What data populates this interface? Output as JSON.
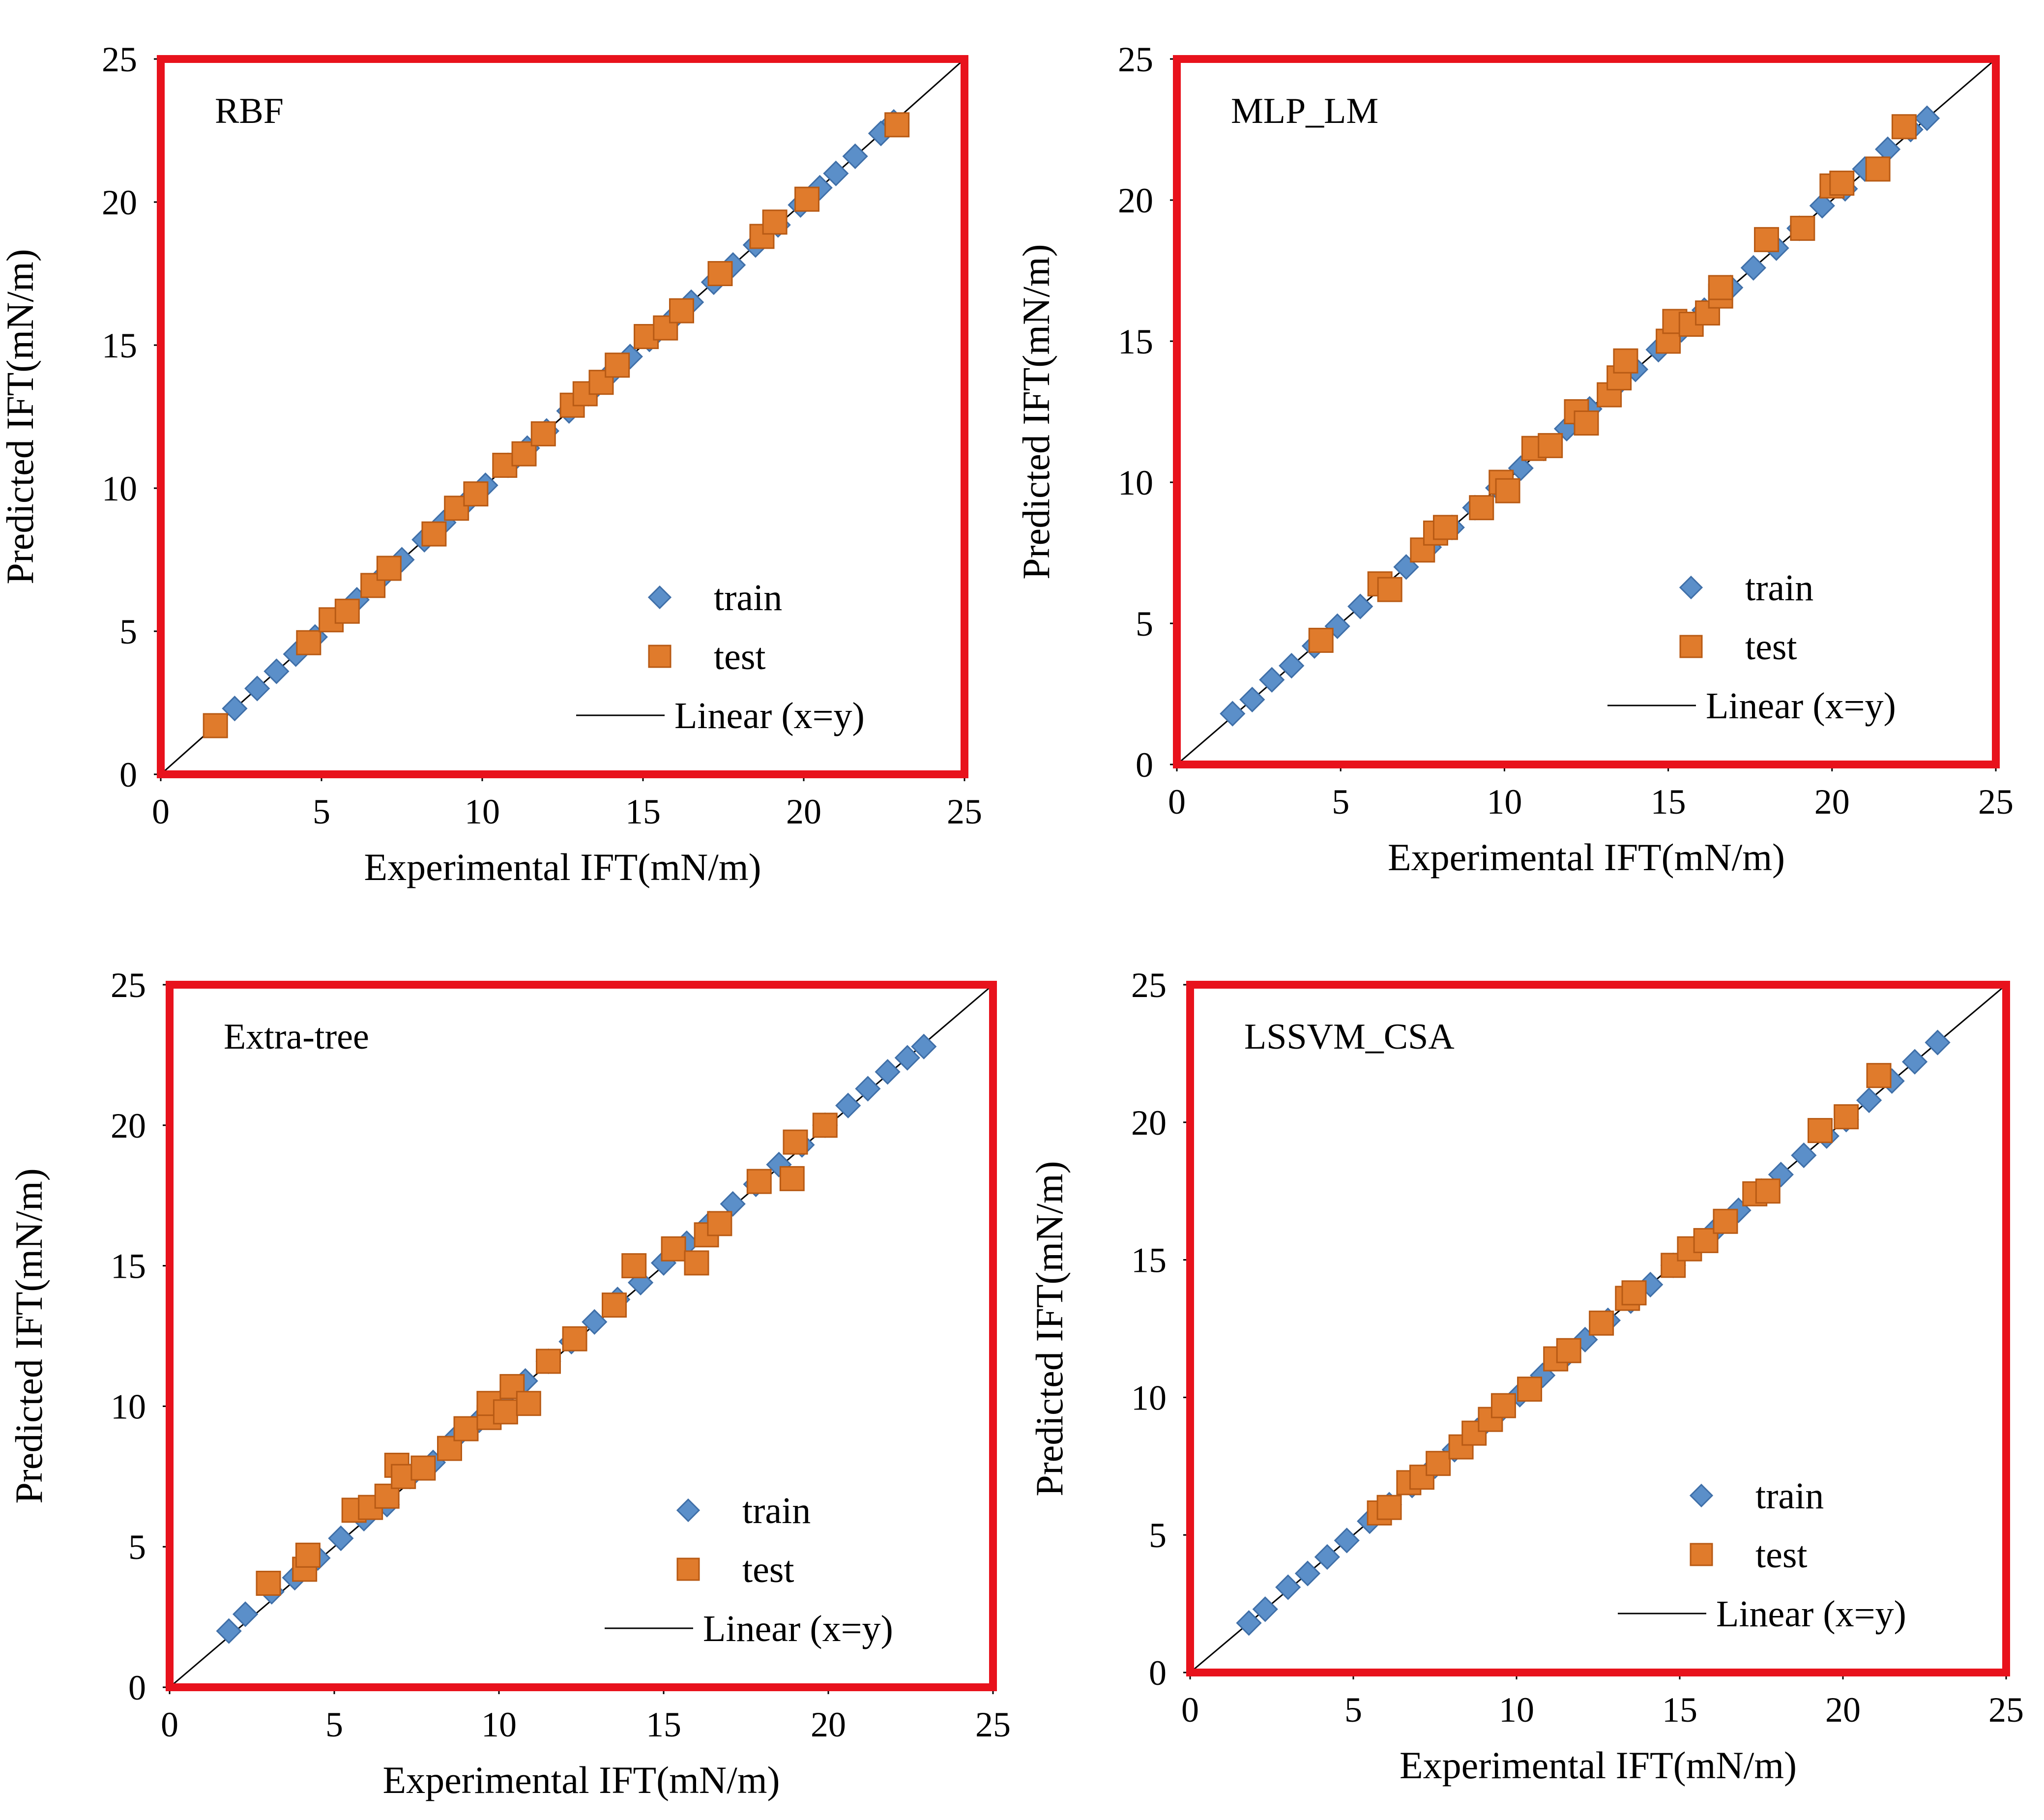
{
  "figure": {
    "colors": {
      "frame": "#e8121c",
      "train": "#5b8fc9",
      "train_edge": "#3f6fa8",
      "test": "#e07b2c",
      "test_edge": "#b85a14",
      "line": "#000000"
    }
  },
  "chart_data": [
    {
      "type": "scatter",
      "model": "RBF",
      "xlabel": "Experimental IFT(mN/m)",
      "ylabel": "Predicted  IFT(mN/m)",
      "xlim": [
        0,
        25
      ],
      "ylim": [
        0,
        25
      ],
      "xticks": [
        "0",
        "5",
        "10",
        "15",
        "20",
        "25"
      ],
      "yticks": [
        "0",
        "5",
        "10",
        "15",
        "20",
        "25"
      ],
      "legend": {
        "train": "train",
        "test": "test",
        "line": "Linear (x=y)"
      },
      "series": [
        {
          "name": "train",
          "points": [
            [
              2.3,
              2.3
            ],
            [
              3.0,
              3.0
            ],
            [
              3.6,
              3.6
            ],
            [
              4.2,
              4.2
            ],
            [
              4.8,
              4.8
            ],
            [
              5.5,
              5.5
            ],
            [
              6.1,
              6.1
            ],
            [
              6.8,
              6.8
            ],
            [
              7.5,
              7.5
            ],
            [
              8.2,
              8.2
            ],
            [
              8.8,
              8.8
            ],
            [
              9.5,
              9.5
            ],
            [
              10.1,
              10.1
            ],
            [
              10.8,
              10.8
            ],
            [
              11.4,
              11.4
            ],
            [
              12.0,
              12.0
            ],
            [
              12.7,
              12.7
            ],
            [
              13.3,
              13.3
            ],
            [
              13.9,
              13.9
            ],
            [
              14.6,
              14.6
            ],
            [
              15.2,
              15.2
            ],
            [
              15.9,
              15.9
            ],
            [
              16.5,
              16.5
            ],
            [
              17.2,
              17.2
            ],
            [
              17.8,
              17.8
            ],
            [
              18.5,
              18.5
            ],
            [
              19.2,
              19.2
            ],
            [
              19.9,
              19.9
            ],
            [
              20.5,
              20.5
            ],
            [
              21.0,
              21.0
            ],
            [
              21.6,
              21.6
            ],
            [
              22.4,
              22.4
            ],
            [
              22.8,
              22.8
            ]
          ]
        },
        {
          "name": "test",
          "points": [
            [
              1.7,
              1.7
            ],
            [
              4.6,
              4.6
            ],
            [
              5.3,
              5.4
            ],
            [
              5.8,
              5.7
            ],
            [
              6.6,
              6.6
            ],
            [
              7.1,
              7.2
            ],
            [
              8.5,
              8.4
            ],
            [
              9.2,
              9.3
            ],
            [
              9.8,
              9.8
            ],
            [
              10.7,
              10.8
            ],
            [
              11.3,
              11.2
            ],
            [
              11.9,
              11.9
            ],
            [
              12.8,
              12.9
            ],
            [
              13.2,
              13.3
            ],
            [
              13.7,
              13.7
            ],
            [
              14.2,
              14.3
            ],
            [
              15.1,
              15.3
            ],
            [
              15.7,
              15.6
            ],
            [
              16.2,
              16.2
            ],
            [
              17.4,
              17.5
            ],
            [
              18.7,
              18.8
            ],
            [
              19.1,
              19.3
            ],
            [
              20.1,
              20.1
            ],
            [
              22.9,
              22.7
            ]
          ]
        }
      ]
    },
    {
      "type": "scatter",
      "model": "MLP_LM",
      "xlabel": "Experimental IFT(mN/m)",
      "ylabel": "Predicted  IFT(mN/m)",
      "xlim": [
        0,
        25
      ],
      "ylim": [
        0,
        25
      ],
      "xticks": [
        "0",
        "5",
        "10",
        "15",
        "20",
        "25"
      ],
      "yticks": [
        "0",
        "5",
        "10",
        "15",
        "20",
        "25"
      ],
      "legend": {
        "train": "train",
        "test": "test",
        "line": "Linear (x=y)"
      },
      "series": [
        {
          "name": "train",
          "points": [
            [
              1.7,
              1.8
            ],
            [
              2.3,
              2.3
            ],
            [
              2.9,
              3.0
            ],
            [
              3.5,
              3.5
            ],
            [
              4.2,
              4.2
            ],
            [
              4.9,
              4.9
            ],
            [
              5.6,
              5.6
            ],
            [
              6.3,
              6.3
            ],
            [
              7.0,
              7.0
            ],
            [
              7.7,
              7.7
            ],
            [
              8.4,
              8.4
            ],
            [
              9.1,
              9.1
            ],
            [
              9.8,
              9.8
            ],
            [
              10.5,
              10.5
            ],
            [
              11.2,
              11.2
            ],
            [
              11.9,
              11.9
            ],
            [
              12.6,
              12.6
            ],
            [
              13.3,
              13.3
            ],
            [
              14.0,
              14.0
            ],
            [
              14.7,
              14.7
            ],
            [
              15.4,
              15.4
            ],
            [
              16.1,
              16.1
            ],
            [
              16.9,
              16.9
            ],
            [
              17.6,
              17.6
            ],
            [
              18.3,
              18.3
            ],
            [
              19.0,
              19.0
            ],
            [
              19.7,
              19.8
            ],
            [
              20.4,
              20.4
            ],
            [
              21.0,
              21.1
            ],
            [
              21.7,
              21.8
            ],
            [
              22.4,
              22.5
            ],
            [
              22.9,
              22.9
            ]
          ]
        },
        {
          "name": "test",
          "points": [
            [
              4.4,
              4.4
            ],
            [
              6.2,
              6.4
            ],
            [
              6.5,
              6.2
            ],
            [
              7.5,
              7.6
            ],
            [
              7.9,
              8.2
            ],
            [
              8.2,
              8.4
            ],
            [
              9.3,
              9.1
            ],
            [
              9.9,
              10.0
            ],
            [
              10.1,
              9.7
            ],
            [
              10.9,
              11.2
            ],
            [
              11.4,
              11.3
            ],
            [
              12.2,
              12.5
            ],
            [
              12.5,
              12.1
            ],
            [
              13.2,
              13.1
            ],
            [
              13.5,
              13.7
            ],
            [
              13.7,
              14.3
            ],
            [
              15.0,
              15.0
            ],
            [
              15.2,
              15.7
            ],
            [
              15.7,
              15.6
            ],
            [
              16.2,
              16.0
            ],
            [
              16.6,
              16.6
            ],
            [
              16.6,
              16.9
            ],
            [
              18.0,
              18.6
            ],
            [
              19.1,
              19.0
            ],
            [
              20.0,
              20.5
            ],
            [
              20.3,
              20.6
            ],
            [
              21.4,
              21.1
            ],
            [
              22.2,
              22.6
            ]
          ]
        }
      ]
    },
    {
      "type": "scatter",
      "model": "Extra-tree",
      "xlabel": "Experimental IFT(mN/m)",
      "ylabel": "Predicted  IFT(mN/m)",
      "xlim": [
        0,
        25
      ],
      "ylim": [
        0,
        25
      ],
      "xticks": [
        "0",
        "5",
        "10",
        "15",
        "20",
        "25"
      ],
      "yticks": [
        "0",
        "5",
        "10",
        "15",
        "20",
        "25"
      ],
      "legend": {
        "train": "train",
        "test": "test",
        "line": "Linear (x=y)"
      },
      "series": [
        {
          "name": "train",
          "points": [
            [
              1.8,
              2.0
            ],
            [
              2.3,
              2.6
            ],
            [
              3.1,
              3.4
            ],
            [
              3.8,
              3.9
            ],
            [
              4.5,
              4.6
            ],
            [
              5.2,
              5.3
            ],
            [
              5.9,
              6.0
            ],
            [
              6.6,
              6.5
            ],
            [
              7.3,
              7.5
            ],
            [
              8.0,
              8.0
            ],
            [
              8.7,
              8.9
            ],
            [
              9.4,
              9.5
            ],
            [
              10.1,
              10.2
            ],
            [
              10.8,
              10.9
            ],
            [
              11.5,
              11.6
            ],
            [
              12.2,
              12.3
            ],
            [
              12.9,
              13.0
            ],
            [
              13.6,
              13.8
            ],
            [
              14.3,
              14.4
            ],
            [
              15.0,
              15.1
            ],
            [
              15.7,
              15.8
            ],
            [
              16.4,
              16.5
            ],
            [
              17.1,
              17.2
            ],
            [
              17.8,
              17.9
            ],
            [
              18.5,
              18.6
            ],
            [
              19.2,
              19.3
            ],
            [
              19.9,
              20.0
            ],
            [
              20.6,
              20.7
            ],
            [
              21.2,
              21.3
            ],
            [
              21.8,
              21.9
            ],
            [
              22.4,
              22.4
            ],
            [
              22.9,
              22.8
            ]
          ]
        },
        {
          "name": "test",
          "points": [
            [
              3.0,
              3.7
            ],
            [
              4.1,
              4.2
            ],
            [
              4.2,
              4.7
            ],
            [
              5.6,
              6.3
            ],
            [
              6.1,
              6.4
            ],
            [
              6.6,
              6.8
            ],
            [
              6.9,
              7.9
            ],
            [
              7.1,
              7.5
            ],
            [
              7.7,
              7.8
            ],
            [
              8.5,
              8.5
            ],
            [
              9.0,
              9.2
            ],
            [
              9.7,
              9.6
            ],
            [
              9.7,
              10.1
            ],
            [
              10.2,
              9.8
            ],
            [
              10.4,
              10.7
            ],
            [
              10.9,
              10.1
            ],
            [
              11.5,
              11.6
            ],
            [
              12.3,
              12.4
            ],
            [
              13.5,
              13.6
            ],
            [
              14.1,
              15.0
            ],
            [
              15.3,
              15.6
            ],
            [
              16.0,
              15.1
            ],
            [
              16.3,
              16.1
            ],
            [
              16.7,
              16.5
            ],
            [
              17.9,
              18.0
            ],
            [
              18.9,
              18.1
            ],
            [
              19.0,
              19.4
            ],
            [
              19.9,
              20.0
            ]
          ]
        }
      ]
    },
    {
      "type": "scatter",
      "model": "LSSVM_CSA",
      "xlabel": "Experimental IFT(mN/m)",
      "ylabel": "Predicted  IFT(mN/m)",
      "xlim": [
        0,
        25
      ],
      "ylim": [
        0,
        25
      ],
      "xticks": [
        "0",
        "5",
        "10",
        "15",
        "20",
        "25"
      ],
      "yticks": [
        "0",
        "5",
        "10",
        "15",
        "20",
        "25"
      ],
      "legend": {
        "train": "train",
        "test": "test",
        "line": "Linear (x=y)"
      },
      "series": [
        {
          "name": "train",
          "points": [
            [
              1.8,
              1.8
            ],
            [
              2.3,
              2.3
            ],
            [
              3.0,
              3.1
            ],
            [
              3.6,
              3.6
            ],
            [
              4.2,
              4.2
            ],
            [
              4.8,
              4.8
            ],
            [
              5.5,
              5.5
            ],
            [
              6.1,
              6.1
            ],
            [
              6.8,
              6.8
            ],
            [
              7.5,
              7.5
            ],
            [
              8.1,
              8.1
            ],
            [
              8.8,
              8.8
            ],
            [
              9.5,
              9.5
            ],
            [
              10.1,
              10.1
            ],
            [
              10.8,
              10.8
            ],
            [
              11.5,
              11.5
            ],
            [
              12.1,
              12.1
            ],
            [
              12.8,
              12.8
            ],
            [
              13.5,
              13.5
            ],
            [
              14.1,
              14.1
            ],
            [
              14.8,
              14.8
            ],
            [
              15.5,
              15.5
            ],
            [
              16.1,
              16.1
            ],
            [
              16.8,
              16.8
            ],
            [
              17.5,
              17.5
            ],
            [
              18.1,
              18.1
            ],
            [
              18.8,
              18.8
            ],
            [
              19.5,
              19.5
            ],
            [
              20.1,
              20.1
            ],
            [
              20.8,
              20.8
            ],
            [
              21.5,
              21.5
            ],
            [
              22.2,
              22.2
            ],
            [
              22.9,
              22.9
            ]
          ]
        },
        {
          "name": "test",
          "points": [
            [
              5.8,
              5.8
            ],
            [
              6.1,
              6.0
            ],
            [
              6.7,
              6.9
            ],
            [
              7.1,
              7.1
            ],
            [
              7.6,
              7.6
            ],
            [
              8.3,
              8.2
            ],
            [
              8.7,
              8.7
            ],
            [
              9.2,
              9.2
            ],
            [
              9.6,
              9.7
            ],
            [
              10.4,
              10.3
            ],
            [
              11.2,
              11.4
            ],
            [
              11.6,
              11.7
            ],
            [
              12.6,
              12.7
            ],
            [
              13.4,
              13.6
            ],
            [
              13.6,
              13.8
            ],
            [
              14.8,
              14.8
            ],
            [
              15.3,
              15.4
            ],
            [
              15.8,
              15.7
            ],
            [
              16.4,
              16.4
            ],
            [
              17.3,
              17.4
            ],
            [
              17.7,
              17.5
            ],
            [
              19.3,
              19.7
            ],
            [
              20.1,
              20.2
            ],
            [
              21.1,
              21.7
            ]
          ]
        }
      ]
    }
  ]
}
